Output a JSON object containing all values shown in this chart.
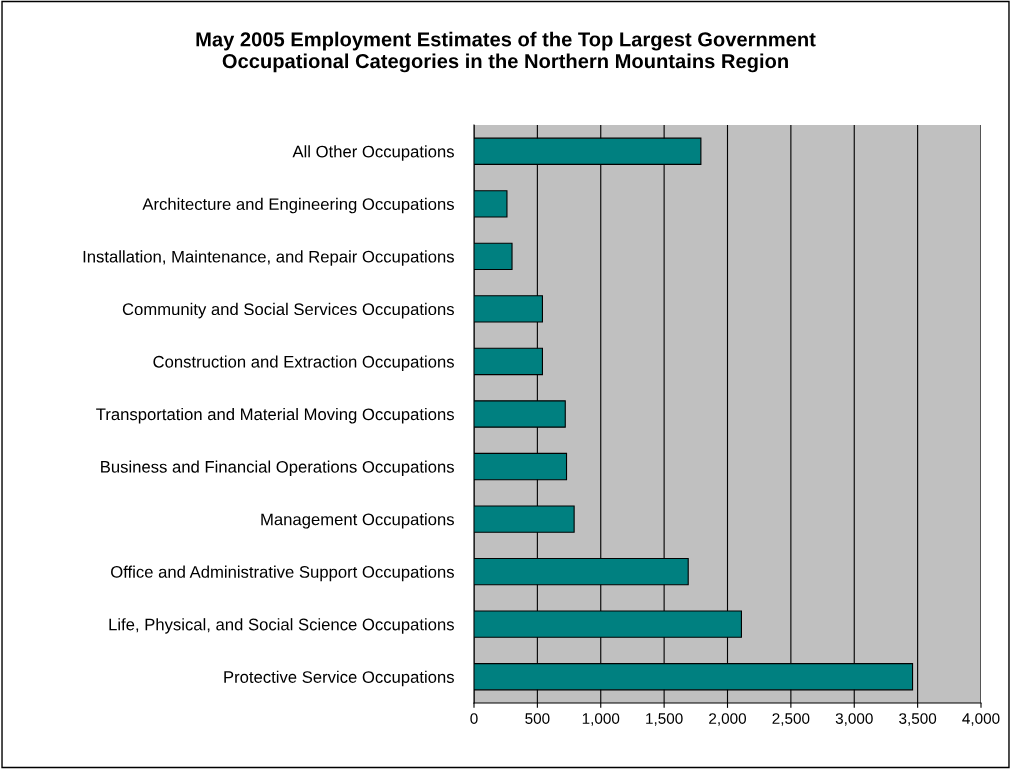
{
  "chart_data": {
    "type": "bar",
    "orientation": "horizontal",
    "title": "May 2005 Employment Estimates of the Top Largest Government\nOccupational Categories in the Northern Mountains Region",
    "categories": [
      "All Other Occupations",
      "Architecture and Engineering Occupations",
      "Installation, Maintenance, and Repair Occupations",
      "Community and Social Services Occupations",
      "Construction and Extraction Occupations",
      "Transportation and Material Moving Occupations",
      "Business and Financial Operations Occupations",
      "Management Occupations",
      "Office and Administrative Support Occupations",
      "Life, Physical, and Social Science Occupations",
      "Protective Service Occupations"
    ],
    "values": [
      1790,
      260,
      300,
      540,
      540,
      720,
      730,
      790,
      1690,
      2110,
      3460
    ],
    "color": "#008080",
    "xlim": [
      0,
      4000
    ],
    "xticks": [
      0,
      {
        "value": 500,
        "label": "500"
      },
      {
        "value": 1000,
        "label": "1,000"
      },
      {
        "value": 1500,
        "label": "1,500"
      },
      {
        "value": 2000,
        "label": "2,000"
      },
      {
        "value": 2500,
        "label": "2,500"
      },
      {
        "value": 3000,
        "label": "3,000"
      },
      {
        "value": 3500,
        "label": "3,500"
      },
      {
        "value": 4000,
        "label": "4,000"
      }
    ],
    "grid": "x"
  }
}
